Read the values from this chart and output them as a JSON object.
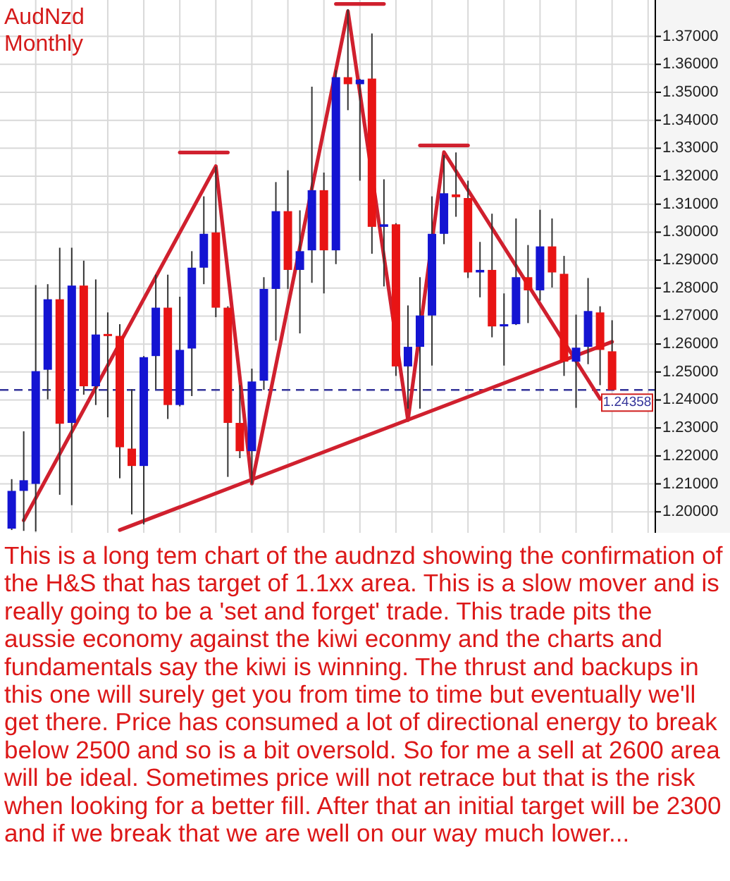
{
  "chart_data": {
    "type": "candlestick",
    "title": "AudNzd",
    "subtitle": "Monthly",
    "categories": [
      null,
      null,
      null,
      null,
      null,
      null,
      null,
      null,
      null,
      null,
      null,
      null,
      null,
      null,
      null,
      null,
      null,
      null,
      null,
      null,
      null,
      null,
      null,
      null,
      null,
      null,
      null,
      null,
      null,
      null,
      null,
      null,
      null,
      null,
      null,
      null,
      null,
      null,
      null,
      null,
      null,
      null,
      null,
      null,
      null,
      null,
      null,
      null,
      null,
      null,
      null
    ],
    "ohlc": [
      [
        1.194,
        1.2117,
        1.1935,
        1.2075
      ],
      [
        1.2075,
        1.2288,
        1.1932,
        1.2113
      ],
      [
        1.21,
        1.2811,
        1.193,
        1.2503
      ],
      [
        1.2508,
        1.2814,
        1.2402,
        1.276
      ],
      [
        1.276,
        1.2944,
        1.2061,
        1.2315
      ],
      [
        1.2318,
        1.2944,
        1.2024,
        1.2809
      ],
      [
        1.2809,
        1.2898,
        1.2419,
        1.2449
      ],
      [
        1.2449,
        1.2831,
        1.2382,
        1.2634
      ],
      [
        1.2636,
        1.2713,
        1.2338,
        1.263
      ],
      [
        1.2629,
        1.2671,
        1.212,
        1.2231
      ],
      [
        1.2226,
        1.2439,
        1.1991,
        1.2164
      ],
      [
        1.2164,
        1.2557,
        1.1955,
        1.2553
      ],
      [
        1.2557,
        1.2848,
        1.2439,
        1.273
      ],
      [
        1.273,
        1.2848,
        1.2332,
        1.2382
      ],
      [
        1.2382,
        1.2769,
        1.2377,
        1.2579
      ],
      [
        1.2584,
        1.2932,
        1.2414,
        1.2873
      ],
      [
        1.2873,
        1.3128,
        1.2814,
        1.2994
      ],
      [
        1.2999,
        1.3234,
        1.2696,
        1.273
      ],
      [
        1.273,
        1.2735,
        1.2125,
        1.2318
      ],
      [
        1.2318,
        1.2453,
        1.2192,
        1.2217
      ],
      [
        1.2217,
        1.2512,
        1.21,
        1.2466
      ],
      [
        1.2469,
        1.2839,
        1.2436,
        1.2797
      ],
      [
        1.2797,
        1.3179,
        1.2612,
        1.3075
      ],
      [
        1.3075,
        1.3221,
        1.2797,
        1.2865
      ],
      [
        1.2865,
        1.3078,
        1.2638,
        1.2932
      ],
      [
        1.2935,
        1.352,
        1.2819,
        1.315
      ],
      [
        1.315,
        1.3213,
        1.2781,
        1.2935
      ],
      [
        1.2935,
        1.3579,
        1.2886,
        1.3554
      ],
      [
        1.3554,
        1.3797,
        1.3436,
        1.3529
      ],
      [
        1.3529,
        1.3548,
        1.3184,
        1.3545
      ],
      [
        1.3549,
        1.371,
        1.2923,
        1.3019
      ],
      [
        1.3019,
        1.3189,
        1.2806,
        1.3028
      ],
      [
        1.3028,
        1.3032,
        1.2486,
        1.252
      ],
      [
        1.252,
        1.2738,
        1.2369,
        1.259
      ],
      [
        1.259,
        1.2839,
        1.2369,
        1.2702
      ],
      [
        1.2702,
        1.3128,
        1.2523,
        1.2994
      ],
      [
        1.2994,
        1.3276,
        1.2957,
        1.3139
      ],
      [
        1.3135,
        1.3285,
        1.3055,
        1.3125
      ],
      [
        1.3122,
        1.3184,
        1.2836,
        1.2856
      ],
      [
        1.2856,
        1.2965,
        1.2767,
        1.2865
      ],
      [
        1.2865,
        1.3066,
        1.2624,
        1.2663
      ],
      [
        1.2663,
        1.2781,
        1.2523,
        1.2671
      ],
      [
        1.2671,
        1.3049,
        1.2668,
        1.2839
      ],
      [
        1.2839,
        1.2954,
        1.2675,
        1.2792
      ],
      [
        1.2792,
        1.308,
        1.2755,
        1.2949
      ],
      [
        1.2949,
        1.3049,
        1.2802,
        1.2856
      ],
      [
        1.2851,
        1.2915,
        1.2486,
        1.2537
      ],
      [
        1.2537,
        1.2705,
        1.2372,
        1.2587
      ],
      [
        1.259,
        1.2836,
        1.2528,
        1.2718
      ],
      [
        1.2713,
        1.2735,
        1.2453,
        1.2579
      ],
      [
        1.2574,
        1.2685,
        1.24358,
        1.24358
      ]
    ],
    "colors": [
      "#1414d2",
      "#1414d2",
      "#1414d2",
      "#1414d2",
      "#e81414",
      "#1414d2",
      "#e81414",
      "#1414d2",
      "#e81414",
      "#e81414",
      "#e81414",
      "#1414d2",
      "#1414d2",
      "#e81414",
      "#1414d2",
      "#1414d2",
      "#1414d2",
      "#e81414",
      "#e81414",
      "#e81414",
      "#1414d2",
      "#1414d2",
      "#1414d2",
      "#e81414",
      "#1414d2",
      "#1414d2",
      "#e81414",
      "#1414d2",
      "#e81414",
      "#1414d2",
      "#e81414",
      "#1414d2",
      "#e81414",
      "#1414d2",
      "#1414d2",
      "#1414d2",
      "#1414d2",
      "#e81414",
      "#e81414",
      "#1414d2",
      "#e81414",
      "#1414d2",
      "#1414d2",
      "#e81414",
      "#1414d2",
      "#e81414",
      "#e81414",
      "#1414d2",
      "#1414d2",
      "#e81414",
      "#e81414"
    ],
    "series": [
      {
        "type": "line",
        "color": "#d0202e",
        "values": [
          null,
          1.197,
          null,
          null,
          null,
          null,
          null,
          null,
          null,
          null,
          null,
          null,
          null,
          null,
          null,
          null,
          null,
          1.3236,
          null,
          null,
          1.2101,
          null,
          null,
          null,
          null,
          null,
          null,
          null,
          1.379,
          null,
          null,
          null,
          null,
          1.2328,
          null,
          null,
          1.3286,
          null,
          null,
          null,
          null,
          null,
          null,
          null,
          null,
          null,
          null,
          null,
          null,
          1.2404,
          null
        ]
      },
      {
        "type": "line",
        "color": "#d0202e",
        "values": [
          null,
          null,
          null,
          null,
          null,
          null,
          null,
          null,
          null,
          1.1935,
          null,
          null,
          null,
          null,
          null,
          null,
          null,
          null,
          null,
          null,
          null,
          null,
          null,
          null,
          null,
          null,
          null,
          null,
          null,
          null,
          null,
          null,
          null,
          null,
          null,
          null,
          null,
          null,
          null,
          null,
          null,
          null,
          null,
          null,
          null,
          null,
          null,
          null,
          null,
          null,
          1.2608
        ]
      },
      {
        "type": "line",
        "color": "#d0202e",
        "values": [
          null,
          null,
          null,
          null,
          null,
          null,
          null,
          null,
          null,
          null,
          null,
          null,
          null,
          null,
          1.3285,
          null,
          null,
          null,
          1.3285,
          null,
          null,
          null,
          null,
          null,
          null,
          null,
          null,
          null,
          null,
          null,
          null,
          null,
          null,
          null,
          null,
          null,
          null,
          null,
          null,
          null,
          null,
          null,
          null,
          null,
          null,
          null,
          null,
          null,
          null,
          null,
          null
        ]
      },
      {
        "type": "line",
        "color": "#d0202e",
        "values": [
          null,
          null,
          null,
          null,
          null,
          null,
          null,
          null,
          null,
          null,
          null,
          null,
          null,
          null,
          null,
          null,
          null,
          null,
          null,
          null,
          null,
          null,
          null,
          null,
          null,
          null,
          null,
          1.3816,
          null,
          null,
          null,
          1.3816,
          null,
          null,
          null,
          null,
          null,
          null,
          null,
          null,
          null,
          null,
          null,
          null,
          null,
          null,
          null,
          null,
          null,
          null,
          null
        ]
      },
      {
        "type": "line",
        "color": "#d0202e",
        "values": [
          null,
          null,
          null,
          null,
          null,
          null,
          null,
          null,
          null,
          null,
          null,
          null,
          null,
          null,
          null,
          null,
          null,
          null,
          null,
          null,
          null,
          null,
          null,
          null,
          null,
          null,
          null,
          null,
          null,
          null,
          null,
          null,
          null,
          null,
          1.331,
          null,
          null,
          null,
          1.331,
          null,
          null,
          null,
          null,
          null,
          null,
          null,
          null,
          null,
          null,
          null,
          null
        ]
      }
    ],
    "ylim": [
      1.1925,
      1.383
    ],
    "yticks": [
      {
        "value": 1.2,
        "label": "1.20000"
      },
      {
        "value": 1.21,
        "label": "1.21000"
      },
      {
        "value": 1.22,
        "label": "1.22000"
      },
      {
        "value": 1.23,
        "label": "1.23000"
      },
      {
        "value": 1.24,
        "label": "1.24000"
      },
      {
        "value": 1.25,
        "label": "1.25000"
      },
      {
        "value": 1.26,
        "label": "1.26000"
      },
      {
        "value": 1.27,
        "label": "1.27000"
      },
      {
        "value": 1.28,
        "label": "1.28000"
      },
      {
        "value": 1.29,
        "label": "1.29000"
      },
      {
        "value": 1.3,
        "label": "1.30000"
      },
      {
        "value": 1.31,
        "label": "1.31000"
      },
      {
        "value": 1.32,
        "label": "1.32000"
      },
      {
        "value": 1.33,
        "label": "1.33000"
      },
      {
        "value": 1.34,
        "label": "1.34000"
      },
      {
        "value": 1.35,
        "label": "1.35000"
      },
      {
        "value": 1.36,
        "label": "1.36000"
      },
      {
        "value": 1.37,
        "label": "1.37000"
      }
    ],
    "grid": true,
    "tick_labels": "y",
    "ref_lines": [
      {
        "axis": "y",
        "value": 1.24358,
        "label": "1.24358",
        "color": "#333399",
        "line_style": "dashed"
      }
    ],
    "annotations": [
      "This is a long tem chart of the audnzd showing the confirmation of the H&S that has target of 1.1xx area. This is a slow mover and is really going to be a 'set and forget' trade. This trade pits the aussie economy against the kiwi econmy and the charts and fundamentals say the kiwi is winning. The thrust and backups in this one will surely get you from time to time but eventually we'll get there. Price has consumed a lot of directional energy to break below 2500 and so is a bit oversold. So for me a sell at 2600 area will be ideal. Sometimes price will not retrace but that is the risk when looking for a better fill. After that an initial target will be 2300 and if we break that we are well on our way much lower..."
    ]
  }
}
